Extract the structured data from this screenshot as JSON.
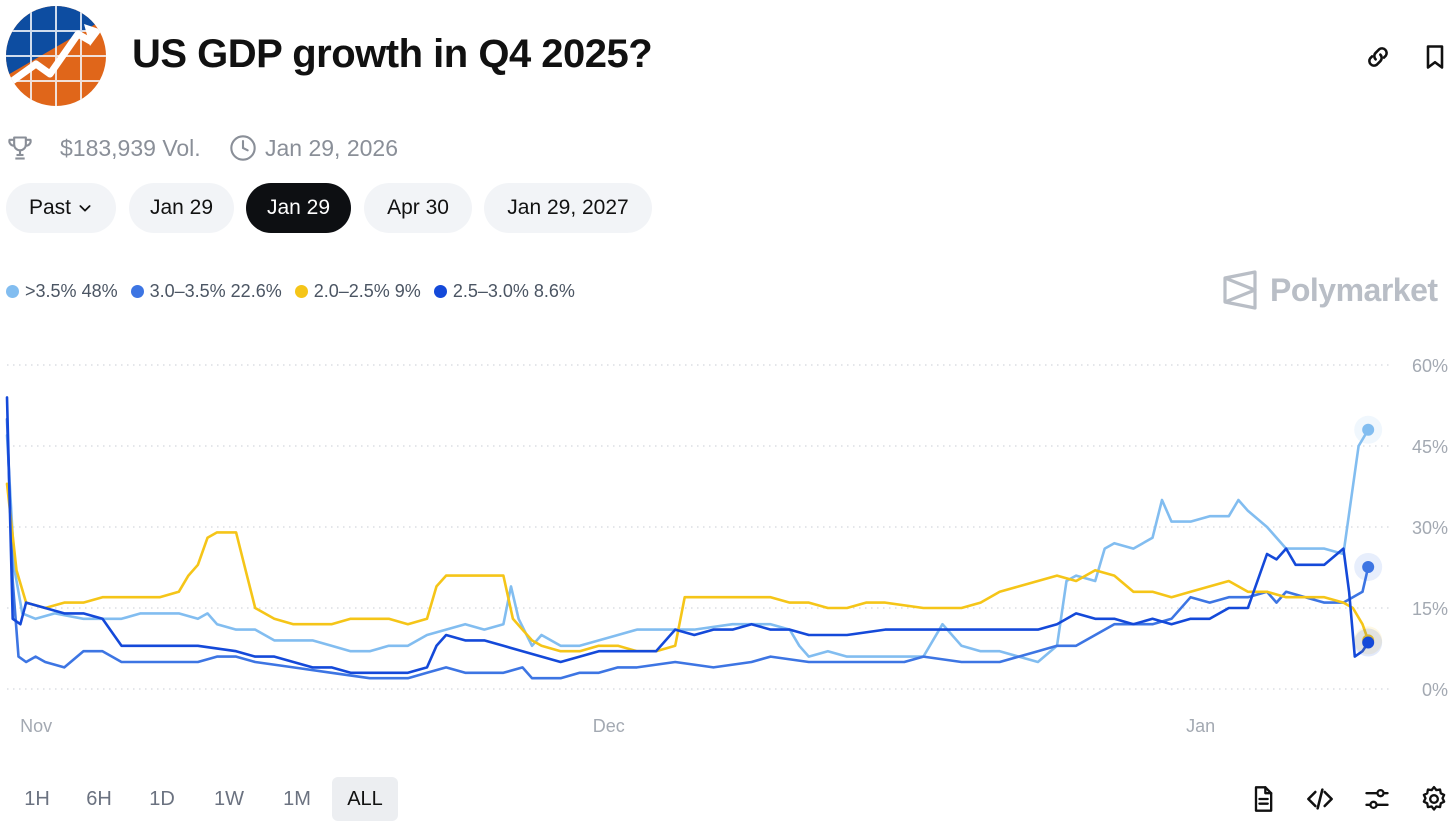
{
  "header": {
    "title": "US GDP growth in Q4 2025?"
  },
  "meta": {
    "volume": "$183,939 Vol.",
    "date": "Jan 29, 2026"
  },
  "pills": [
    {
      "label": "Past",
      "dropdown": true,
      "active": false
    },
    {
      "label": "Jan 29",
      "active": false
    },
    {
      "label": "Jan 29",
      "active": true
    },
    {
      "label": "Apr 30",
      "active": false
    },
    {
      "label": "Jan 29, 2027",
      "active": false
    }
  ],
  "watermark": "Polymarket",
  "range_buttons": [
    "1H",
    "6H",
    "1D",
    "1W",
    "1M",
    "ALL"
  ],
  "range_selected": "ALL",
  "icons": {
    "header": [
      "link-icon",
      "bookmark-icon"
    ],
    "meta": [
      "trophy-icon",
      "clock-icon"
    ],
    "tools": [
      "document-icon",
      "code-icon",
      "sliders-icon",
      "settings-icon"
    ]
  },
  "chart_data": {
    "type": "line",
    "x_unit": "days since Oct 31, 2025",
    "x_ticks": [
      {
        "label": "Nov",
        "x": 1
      },
      {
        "label": "Dec",
        "x": 31
      },
      {
        "label": "Jan",
        "x": 62
      }
    ],
    "xlim": [
      0,
      71.5
    ],
    "y_ticks": [
      0,
      15,
      30,
      45,
      60
    ],
    "y_tick_labels": [
      "0%",
      "15%",
      "30%",
      "45%",
      "60%"
    ],
    "ylim": [
      0,
      60
    ],
    "grid": "horizontal dotted",
    "y_axis_side": "right",
    "legend_position": "top-left",
    "series": [
      {
        "name": ">3.5%",
        "label": "48%",
        "color": "#82bdf0",
        "points": [
          [
            0,
            47
          ],
          [
            0.4,
            22
          ],
          [
            0.8,
            14
          ],
          [
            1.5,
            13
          ],
          [
            2.5,
            14
          ],
          [
            4,
            13
          ],
          [
            6,
            13
          ],
          [
            7,
            14
          ],
          [
            8,
            14
          ],
          [
            9,
            14
          ],
          [
            10,
            13
          ],
          [
            10.5,
            14
          ],
          [
            11,
            12
          ],
          [
            12,
            11
          ],
          [
            13,
            11
          ],
          [
            14,
            9
          ],
          [
            16,
            9
          ],
          [
            17,
            8
          ],
          [
            18,
            7
          ],
          [
            19,
            7
          ],
          [
            20,
            8
          ],
          [
            21,
            8
          ],
          [
            22,
            10
          ],
          [
            23,
            11
          ],
          [
            24,
            12
          ],
          [
            25,
            11
          ],
          [
            26,
            12
          ],
          [
            26.4,
            19
          ],
          [
            26.8,
            13
          ],
          [
            27.5,
            8
          ],
          [
            28,
            10
          ],
          [
            29,
            8
          ],
          [
            30,
            8
          ],
          [
            31,
            9
          ],
          [
            32,
            10
          ],
          [
            33,
            11
          ],
          [
            34,
            11
          ],
          [
            36,
            11
          ],
          [
            38,
            12
          ],
          [
            40,
            12
          ],
          [
            41,
            11
          ],
          [
            41.5,
            8
          ],
          [
            42,
            6
          ],
          [
            43,
            7
          ],
          [
            44,
            6
          ],
          [
            46,
            6
          ],
          [
            48,
            6
          ],
          [
            49,
            12
          ],
          [
            50,
            8
          ],
          [
            51,
            7
          ],
          [
            52,
            7
          ],
          [
            53,
            6
          ],
          [
            54,
            5
          ],
          [
            55,
            8
          ],
          [
            55.5,
            20
          ],
          [
            56,
            21
          ],
          [
            57,
            20
          ],
          [
            57.5,
            26
          ],
          [
            58,
            27
          ],
          [
            59,
            26
          ],
          [
            60,
            28
          ],
          [
            60.5,
            35
          ],
          [
            61,
            31
          ],
          [
            62,
            31
          ],
          [
            63,
            32
          ],
          [
            64,
            32
          ],
          [
            64.5,
            35
          ],
          [
            65,
            33
          ],
          [
            66,
            30
          ],
          [
            67,
            26
          ],
          [
            68,
            26
          ],
          [
            69,
            26
          ],
          [
            70,
            25
          ],
          [
            70.4,
            35
          ],
          [
            70.8,
            45
          ],
          [
            71.3,
            48
          ]
        ]
      },
      {
        "name": "3.0–3.5%",
        "label": "22.6%",
        "color": "#3d75e3",
        "points": [
          [
            0,
            50
          ],
          [
            0.3,
            20
          ],
          [
            0.6,
            6
          ],
          [
            1,
            5
          ],
          [
            1.5,
            6
          ],
          [
            2,
            5
          ],
          [
            3,
            4
          ],
          [
            4,
            7
          ],
          [
            5,
            7
          ],
          [
            6,
            5
          ],
          [
            8,
            5
          ],
          [
            10,
            5
          ],
          [
            11,
            6
          ],
          [
            12,
            6
          ],
          [
            13,
            5
          ],
          [
            15,
            4
          ],
          [
            17,
            3
          ],
          [
            19,
            2
          ],
          [
            20,
            2
          ],
          [
            21,
            2
          ],
          [
            22,
            3
          ],
          [
            23,
            4
          ],
          [
            24,
            3
          ],
          [
            25,
            3
          ],
          [
            26,
            3
          ],
          [
            27,
            4
          ],
          [
            27.5,
            2
          ],
          [
            28,
            2
          ],
          [
            29,
            2
          ],
          [
            30,
            3
          ],
          [
            31,
            3
          ],
          [
            32,
            4
          ],
          [
            33,
            4
          ],
          [
            35,
            5
          ],
          [
            37,
            4
          ],
          [
            39,
            5
          ],
          [
            40,
            6
          ],
          [
            42,
            5
          ],
          [
            44,
            5
          ],
          [
            46,
            5
          ],
          [
            47,
            5
          ],
          [
            48,
            6
          ],
          [
            50,
            5
          ],
          [
            52,
            5
          ],
          [
            53,
            6
          ],
          [
            54,
            7
          ],
          [
            55,
            8
          ],
          [
            56,
            8
          ],
          [
            57,
            10
          ],
          [
            58,
            12
          ],
          [
            59,
            12
          ],
          [
            60,
            12
          ],
          [
            61,
            13
          ],
          [
            62,
            17
          ],
          [
            63,
            16
          ],
          [
            64,
            17
          ],
          [
            65,
            17
          ],
          [
            66,
            18
          ],
          [
            66.5,
            16
          ],
          [
            67,
            18
          ],
          [
            68,
            17
          ],
          [
            69,
            16
          ],
          [
            70,
            16
          ],
          [
            71,
            18
          ],
          [
            71.3,
            22.6
          ]
        ]
      },
      {
        "name": "2.0–2.5%",
        "label": "9%",
        "color": "#f5c518",
        "points": [
          [
            0,
            38
          ],
          [
            0.5,
            22
          ],
          [
            1,
            16
          ],
          [
            2,
            15
          ],
          [
            3,
            16
          ],
          [
            4,
            16
          ],
          [
            5,
            17
          ],
          [
            6,
            17
          ],
          [
            7,
            17
          ],
          [
            8,
            17
          ],
          [
            9,
            18
          ],
          [
            9.5,
            21
          ],
          [
            10,
            23
          ],
          [
            10.5,
            28
          ],
          [
            11,
            29
          ],
          [
            12,
            29
          ],
          [
            12.5,
            22
          ],
          [
            13,
            15
          ],
          [
            14,
            13
          ],
          [
            15,
            12
          ],
          [
            16,
            12
          ],
          [
            17,
            12
          ],
          [
            18,
            13
          ],
          [
            19,
            13
          ],
          [
            20,
            13
          ],
          [
            21,
            12
          ],
          [
            22,
            13
          ],
          [
            22.5,
            19
          ],
          [
            23,
            21
          ],
          [
            24,
            21
          ],
          [
            25,
            21
          ],
          [
            26,
            21
          ],
          [
            26.5,
            13
          ],
          [
            27,
            11
          ],
          [
            27.5,
            9
          ],
          [
            28,
            8
          ],
          [
            29,
            7
          ],
          [
            30,
            7
          ],
          [
            31,
            8
          ],
          [
            32,
            8
          ],
          [
            33,
            7
          ],
          [
            34,
            7
          ],
          [
            35,
            8
          ],
          [
            35.5,
            17
          ],
          [
            36,
            17
          ],
          [
            37,
            17
          ],
          [
            39,
            17
          ],
          [
            40,
            17
          ],
          [
            41,
            16
          ],
          [
            42,
            16
          ],
          [
            43,
            15
          ],
          [
            44,
            15
          ],
          [
            45,
            16
          ],
          [
            46,
            16
          ],
          [
            48,
            15
          ],
          [
            50,
            15
          ],
          [
            51,
            16
          ],
          [
            52,
            18
          ],
          [
            53,
            19
          ],
          [
            54,
            20
          ],
          [
            55,
            21
          ],
          [
            56,
            20
          ],
          [
            57,
            22
          ],
          [
            58,
            21
          ],
          [
            59,
            18
          ],
          [
            60,
            18
          ],
          [
            61,
            17
          ],
          [
            62,
            18
          ],
          [
            63,
            19
          ],
          [
            64,
            20
          ],
          [
            65,
            18
          ],
          [
            66,
            18
          ],
          [
            67,
            17
          ],
          [
            68,
            17
          ],
          [
            69,
            17
          ],
          [
            70,
            16
          ],
          [
            70.5,
            15
          ],
          [
            71,
            12
          ],
          [
            71.3,
            9
          ]
        ]
      },
      {
        "name": "2.5–3.0%",
        "label": "8.6%",
        "color": "#1449d9",
        "points": [
          [
            0,
            54
          ],
          [
            0.3,
            13
          ],
          [
            0.7,
            12
          ],
          [
            1,
            16
          ],
          [
            2,
            15
          ],
          [
            3,
            14
          ],
          [
            4,
            14
          ],
          [
            5,
            13
          ],
          [
            6,
            8
          ],
          [
            8,
            8
          ],
          [
            10,
            8
          ],
          [
            12,
            7
          ],
          [
            13,
            6
          ],
          [
            14,
            6
          ],
          [
            15,
            5
          ],
          [
            16,
            4
          ],
          [
            17,
            4
          ],
          [
            18,
            3
          ],
          [
            19,
            3
          ],
          [
            20,
            3
          ],
          [
            21,
            3
          ],
          [
            22,
            4
          ],
          [
            22.5,
            8
          ],
          [
            23,
            10
          ],
          [
            24,
            9
          ],
          [
            25,
            9
          ],
          [
            26,
            8
          ],
          [
            27,
            7
          ],
          [
            28,
            6
          ],
          [
            29,
            5
          ],
          [
            30,
            6
          ],
          [
            31,
            7
          ],
          [
            32,
            7
          ],
          [
            33,
            7
          ],
          [
            34,
            7
          ],
          [
            35,
            11
          ],
          [
            36,
            10
          ],
          [
            37,
            11
          ],
          [
            38,
            11
          ],
          [
            39,
            12
          ],
          [
            40,
            11
          ],
          [
            41,
            11
          ],
          [
            42,
            10
          ],
          [
            44,
            10
          ],
          [
            46,
            11
          ],
          [
            48,
            11
          ],
          [
            50,
            11
          ],
          [
            52,
            11
          ],
          [
            54,
            11
          ],
          [
            55,
            12
          ],
          [
            56,
            14
          ],
          [
            57,
            13
          ],
          [
            58,
            13
          ],
          [
            59,
            12
          ],
          [
            60,
            13
          ],
          [
            61,
            12
          ],
          [
            62,
            13
          ],
          [
            63,
            13
          ],
          [
            64,
            15
          ],
          [
            65,
            15
          ],
          [
            66,
            25
          ],
          [
            66.5,
            24
          ],
          [
            67,
            26
          ],
          [
            67.5,
            23
          ],
          [
            68,
            23
          ],
          [
            69,
            23
          ],
          [
            70,
            26
          ],
          [
            70.3,
            18
          ],
          [
            70.6,
            6
          ],
          [
            71,
            7
          ],
          [
            71.3,
            8.6
          ]
        ]
      }
    ]
  }
}
